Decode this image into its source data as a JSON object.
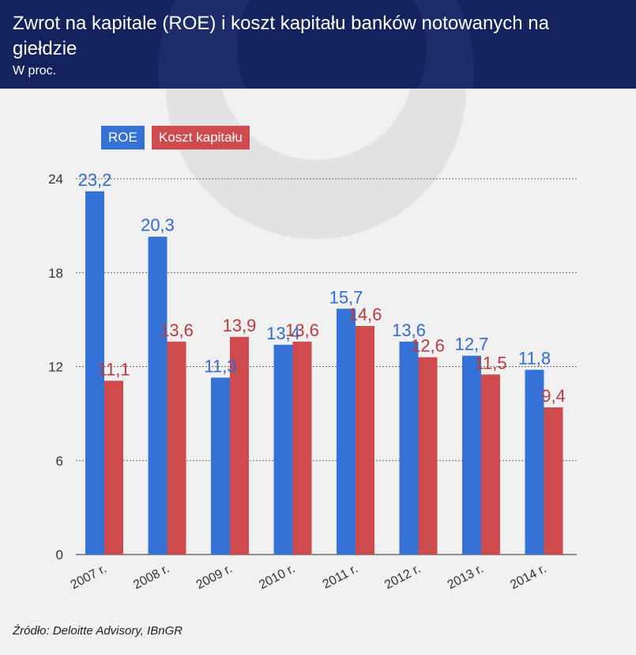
{
  "header": {
    "title": "Zwrot na kapitale (ROE) i koszt kapitału banków notowanych na giełdzie",
    "subtitle": "W proc."
  },
  "legend": {
    "roe_label": "ROE",
    "koszt_label": "Koszt kapitału"
  },
  "source": "Źródło: Deloitte Advisory, IBnGR",
  "colors": {
    "roe": "#3572d8",
    "koszt": "#cf4a4c",
    "roe_text": "#2f6bd0",
    "koszt_text": "#b93b3e",
    "header_bg": "#14225e"
  },
  "chart_data": {
    "type": "bar",
    "title": "Zwrot na kapitale (ROE) i koszt kapitału banków notowanych na giełdzie",
    "subtitle": "W proc.",
    "xlabel": "",
    "ylabel": "",
    "ylim": [
      0,
      24
    ],
    "yticks": [
      0,
      6,
      12,
      18,
      24
    ],
    "grid": true,
    "legend_position": "top-left",
    "categories": [
      "2007 r.",
      "2008 r.",
      "2009 r.",
      "2010 r.",
      "2011 r.",
      "2012 r.",
      "2013 r.",
      "2014 r."
    ],
    "series": [
      {
        "name": "ROE",
        "values": [
          23.2,
          20.3,
          11.3,
          13.4,
          15.7,
          13.6,
          12.7,
          11.8
        ],
        "labels": [
          "23,2",
          "20,3",
          "11,3",
          "13,4",
          "15,7",
          "13,6",
          "12,7",
          "11,8"
        ]
      },
      {
        "name": "Koszt kapitału",
        "values": [
          11.1,
          13.6,
          13.9,
          13.6,
          14.6,
          12.6,
          11.5,
          9.4
        ],
        "labels": [
          "11,1",
          "13,6",
          "13,9",
          "13,6",
          "14,6",
          "12,6",
          "11,5",
          "9,4"
        ]
      }
    ]
  }
}
